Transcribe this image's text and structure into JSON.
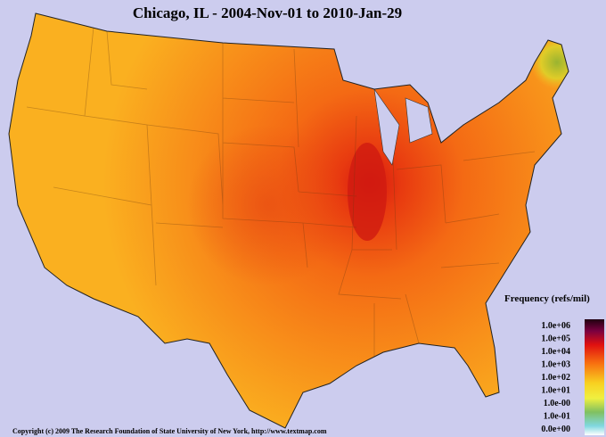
{
  "header": {
    "title": "Chicago, IL - 2004-Nov-01 to 2010-Jan-29"
  },
  "legend": {
    "title": "Frequency (refs/mil)",
    "labels": [
      "1.0e+06",
      "1.0e+05",
      "1.0e+04",
      "1.0e+03",
      "1.0e+02",
      "1.0e+01",
      "1.0e-00",
      "1.0e-01",
      "0.0e+00"
    ]
  },
  "footer": {
    "copyright": "Copyright (c) 2009 The Research Foundation of State University of New York, http://www.textmap.com"
  }
}
